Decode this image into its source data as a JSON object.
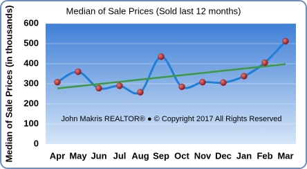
{
  "chart_data": {
    "type": "line",
    "title": "Median of Sale Prices (Sold last 12 months)",
    "y_label": "Median of Sale Prices (in thousands)",
    "annotation": "John Makris REALTOR®  ●  © Copyright 2017 All Rights Reserved",
    "categories": [
      "Apr",
      "May",
      "Jun",
      "Jul",
      "Aug",
      "Sep",
      "Oct",
      "Nov",
      "Dec",
      "Jan",
      "Feb",
      "Mar"
    ],
    "values": [
      308,
      360,
      278,
      290,
      258,
      435,
      285,
      308,
      306,
      338,
      405,
      512
    ],
    "color": "#1f7fd6",
    "marker_color": "#a0262a",
    "trendline": {
      "values": [
        277,
        398
      ],
      "color": "#3c9a3c"
    },
    "ylim": [
      0,
      600
    ],
    "yticks": [
      0,
      100,
      200,
      300,
      400,
      500,
      600
    ],
    "grid": true
  }
}
